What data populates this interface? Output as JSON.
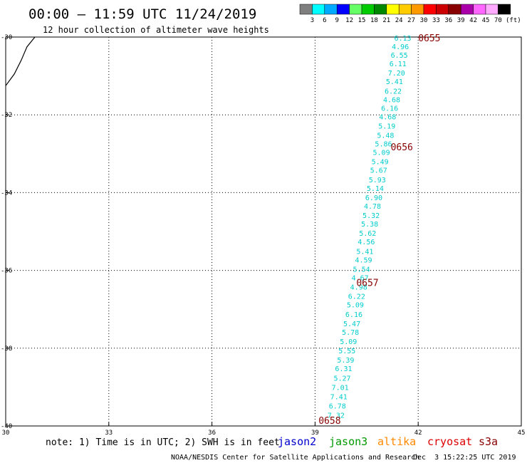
{
  "header": {
    "title": "00:00 – 11:59 UTC 11/24/2019",
    "subtitle": "12 hour collection of altimeter wave heights"
  },
  "color_scale": {
    "labels": [
      "3",
      "6",
      "9",
      "12",
      "15",
      "18",
      "21",
      "24",
      "27",
      "30",
      "33",
      "36",
      "39",
      "42",
      "45",
      "70"
    ],
    "unit": "(ft)",
    "colors": [
      "#7f7f7f",
      "#00ffff",
      "#00aaff",
      "#0000ff",
      "#66ff66",
      "#00cc00",
      "#008800",
      "#ffff00",
      "#ffcc00",
      "#ff9900",
      "#ff0000",
      "#cc0000",
      "#880000",
      "#aa00aa",
      "#ff66ff",
      "#ffaaff",
      "#000000"
    ]
  },
  "footer": {
    "note": "note: 1) Time is in UTC; 2) SWH is in feet",
    "credit": "NOAA/NESDIS Center for Satellite Applications and Research",
    "timestamp": "Dec  3 15:22:25 UTC 2019"
  },
  "legend": [
    {
      "name": "jason2",
      "color": "#0000cc"
    },
    {
      "name": "jason3",
      "color": "#009900"
    },
    {
      "name": "altika",
      "color": "#ff8800"
    },
    {
      "name": "cryosat",
      "color": "#dd0000"
    },
    {
      "name": "s3a",
      "color": "#880000"
    }
  ],
  "chart_data": {
    "type": "scatter",
    "xlim": [
      30,
      45
    ],
    "ylim": [
      -40,
      -30
    ],
    "x_ticks": [
      "30",
      "33",
      "36",
      "39",
      "42",
      "45"
    ],
    "y_ticks": [
      "-30",
      "-32",
      "-34",
      "-36",
      "-38",
      "-40"
    ],
    "grid": true,
    "point_color": "#00cccc",
    "time_label_color": "#880000",
    "points": [
      {
        "x": 41.8,
        "y": -30.02,
        "v": "6.13"
      },
      {
        "x": 41.73,
        "y": -30.24,
        "v": "4.96"
      },
      {
        "x": 41.7,
        "y": -30.46,
        "v": "6.55"
      },
      {
        "x": 41.66,
        "y": -30.68,
        "v": "6.11"
      },
      {
        "x": 41.62,
        "y": -30.92,
        "v": "7.20"
      },
      {
        "x": 41.56,
        "y": -31.14,
        "v": "5.41"
      },
      {
        "x": 41.52,
        "y": -31.38,
        "v": "6.22"
      },
      {
        "x": 41.48,
        "y": -31.6,
        "v": "4.68"
      },
      {
        "x": 41.42,
        "y": -31.82,
        "v": "6.16"
      },
      {
        "x": 41.36,
        "y": -32.04,
        "v": "4.68"
      },
      {
        "x": 41.34,
        "y": -32.28,
        "v": "5.19"
      },
      {
        "x": 41.3,
        "y": -32.52,
        "v": "5.48"
      },
      {
        "x": 41.24,
        "y": -32.74,
        "v": "5.86"
      },
      {
        "x": 41.18,
        "y": -32.96,
        "v": "5.09"
      },
      {
        "x": 41.14,
        "y": -33.2,
        "v": "5.49"
      },
      {
        "x": 41.1,
        "y": -33.42,
        "v": "5.67"
      },
      {
        "x": 41.06,
        "y": -33.66,
        "v": "5.93"
      },
      {
        "x": 41.0,
        "y": -33.88,
        "v": "5.14"
      },
      {
        "x": 40.96,
        "y": -34.12,
        "v": "6.90"
      },
      {
        "x": 40.92,
        "y": -34.34,
        "v": "4.78"
      },
      {
        "x": 40.88,
        "y": -34.58,
        "v": "5.32"
      },
      {
        "x": 40.84,
        "y": -34.8,
        "v": "5.38"
      },
      {
        "x": 40.78,
        "y": -35.04,
        "v": "5.62"
      },
      {
        "x": 40.74,
        "y": -35.26,
        "v": "4.56"
      },
      {
        "x": 40.7,
        "y": -35.5,
        "v": "5.41"
      },
      {
        "x": 40.66,
        "y": -35.72,
        "v": "4.59"
      },
      {
        "x": 40.6,
        "y": -35.96,
        "v": "5.54"
      },
      {
        "x": 40.56,
        "y": -36.18,
        "v": "4.67"
      },
      {
        "x": 40.52,
        "y": -36.42,
        "v": "4.98"
      },
      {
        "x": 40.46,
        "y": -36.66,
        "v": "6.22"
      },
      {
        "x": 40.42,
        "y": -36.88,
        "v": "5.09"
      },
      {
        "x": 40.38,
        "y": -37.12,
        "v": "6.16"
      },
      {
        "x": 40.32,
        "y": -37.36,
        "v": "5.47"
      },
      {
        "x": 40.28,
        "y": -37.58,
        "v": "5.78"
      },
      {
        "x": 40.22,
        "y": -37.82,
        "v": "5.09"
      },
      {
        "x": 40.18,
        "y": -38.06,
        "v": "5.55"
      },
      {
        "x": 40.14,
        "y": -38.3,
        "v": "5.39"
      },
      {
        "x": 40.08,
        "y": -38.52,
        "v": "6.31"
      },
      {
        "x": 40.04,
        "y": -38.76,
        "v": "5.27"
      },
      {
        "x": 39.98,
        "y": -39.0,
        "v": "7.01"
      },
      {
        "x": 39.94,
        "y": -39.24,
        "v": "7.41"
      },
      {
        "x": 39.9,
        "y": -39.48,
        "v": "6.78"
      },
      {
        "x": 39.86,
        "y": -39.72,
        "v": "7.32"
      }
    ],
    "time_labels": [
      {
        "x": 42.0,
        "y": -30.02,
        "label": "0655"
      },
      {
        "x": 41.2,
        "y": -32.82,
        "label": "0656"
      },
      {
        "x": 40.2,
        "y": -36.31,
        "label": "0657"
      },
      {
        "x": 39.1,
        "y": -39.85,
        "label": "0658"
      }
    ],
    "coastline": [
      [
        30.0,
        -31.25
      ],
      [
        30.25,
        -30.95
      ],
      [
        30.45,
        -30.6
      ],
      [
        30.62,
        -30.25
      ],
      [
        30.85,
        -30.0
      ]
    ]
  }
}
